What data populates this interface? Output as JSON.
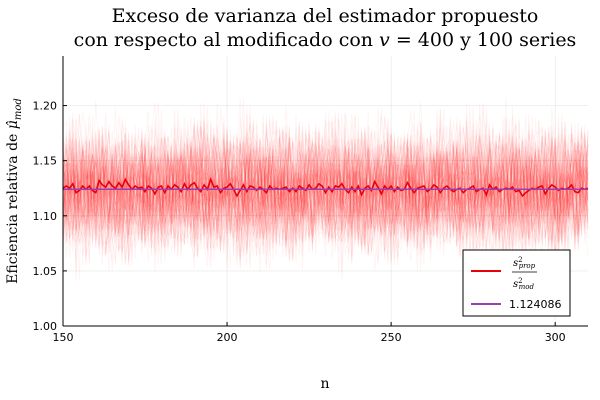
{
  "chart_data": {
    "type": "line",
    "title_line1": "Exceso de varianza del estimador propuesto",
    "title_line2_pre": "con respecto al modificado con ",
    "title_line2_var": "v",
    "title_line2_post": " = 400 y 100 series",
    "xlabel": "n",
    "ylabel_pre": "Eficiencia relativa de ",
    "ylabel_mu": "μ̂",
    "ylabel_sub": "mod",
    "xlim": [
      150,
      310
    ],
    "ylim": [
      1.0,
      1.245
    ],
    "xticks": [
      "150",
      "200",
      "250",
      "300"
    ],
    "yticks": [
      "1.00",
      "1.05",
      "1.10",
      "1.15",
      "1.20"
    ],
    "grid": true,
    "legend_position": "bottom-right",
    "background_series_count": 100,
    "background_color": "#ff0000",
    "series": [
      {
        "name_num": "s",
        "name_num_sub": "prop",
        "name_den": "s",
        "name_den_sub": "mod",
        "color": "#e8000b",
        "x_start": 150,
        "x_step": 1,
        "values": [
          1.125,
          1.127,
          1.125,
          1.129,
          1.121,
          1.123,
          1.127,
          1.124,
          1.127,
          1.123,
          1.121,
          1.132,
          1.128,
          1.126,
          1.131,
          1.127,
          1.125,
          1.13,
          1.126,
          1.133,
          1.128,
          1.124,
          1.127,
          1.125,
          1.126,
          1.122,
          1.127,
          1.125,
          1.12,
          1.126,
          1.127,
          1.121,
          1.127,
          1.124,
          1.128,
          1.126,
          1.122,
          1.129,
          1.124,
          1.128,
          1.13,
          1.125,
          1.122,
          1.128,
          1.124,
          1.133,
          1.126,
          1.127,
          1.121,
          1.125,
          1.126,
          1.129,
          1.124,
          1.118,
          1.123,
          1.128,
          1.122,
          1.127,
          1.126,
          1.123,
          1.126,
          1.124,
          1.121,
          1.127,
          1.124,
          1.125,
          1.124,
          1.125,
          1.126,
          1.122,
          1.125,
          1.122,
          1.127,
          1.125,
          1.123,
          1.128,
          1.124,
          1.125,
          1.129,
          1.127,
          1.121,
          1.126,
          1.122,
          1.127,
          1.126,
          1.129,
          1.124,
          1.121,
          1.126,
          1.122,
          1.127,
          1.119,
          1.125,
          1.127,
          1.123,
          1.131,
          1.126,
          1.12,
          1.127,
          1.124,
          1.127,
          1.122,
          1.126,
          1.123,
          1.124,
          1.13,
          1.125,
          1.121,
          1.125,
          1.126,
          1.127,
          1.122,
          1.124,
          1.128,
          1.126,
          1.121,
          1.125,
          1.127,
          1.124,
          1.122,
          1.124,
          1.125,
          1.121,
          1.124,
          1.125,
          1.127,
          1.122,
          1.124,
          1.125,
          1.119,
          1.128,
          1.124,
          1.126,
          1.122,
          1.124,
          1.125,
          1.124,
          1.126,
          1.122,
          1.123,
          1.118,
          1.121,
          1.123,
          1.125,
          1.124,
          1.126,
          1.127,
          1.12,
          1.125,
          1.128,
          1.126,
          1.123,
          1.125,
          1.124,
          1.125,
          1.128,
          1.122,
          1.121,
          1.125,
          1.124,
          1.125
        ]
      },
      {
        "name": "1.124086",
        "color": "#9b3fb5",
        "constant": 1.124086
      }
    ]
  }
}
